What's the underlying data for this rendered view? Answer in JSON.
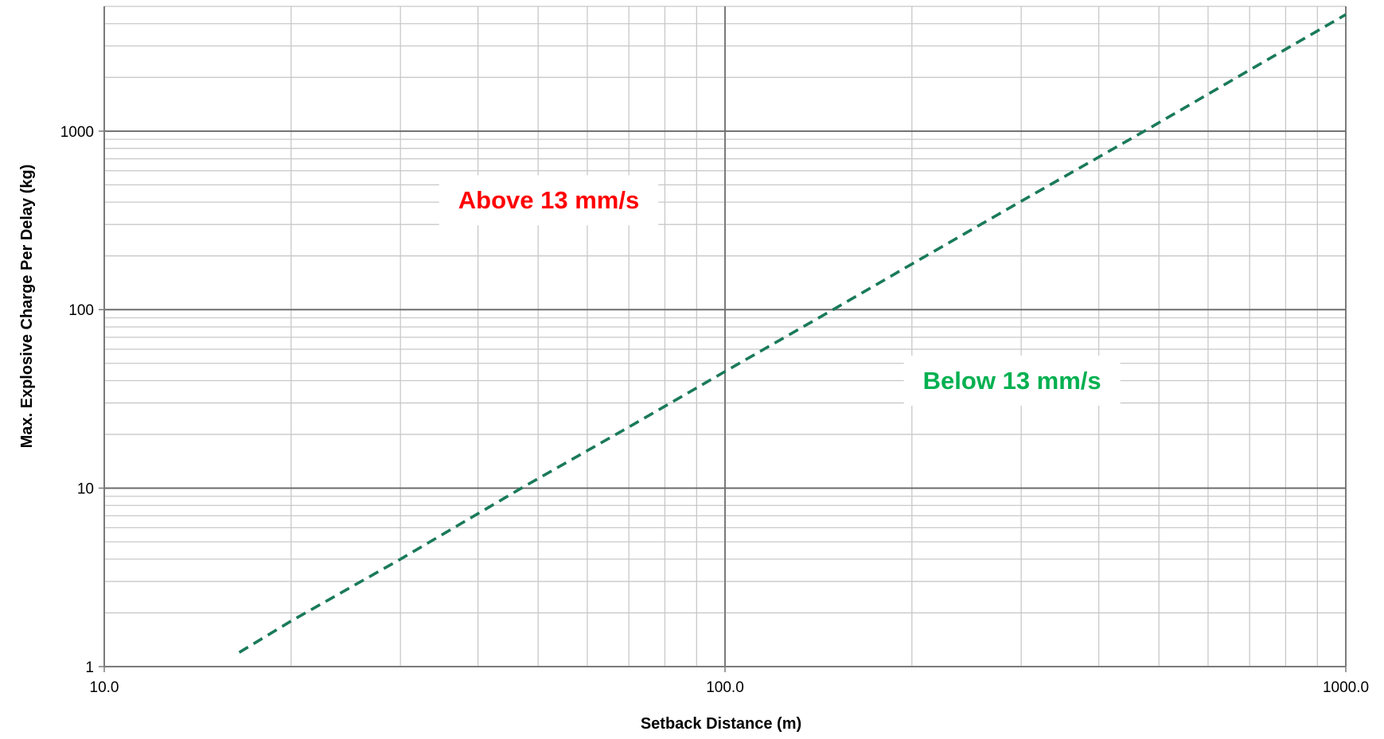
{
  "chart_data": {
    "type": "line",
    "title": "",
    "xlabel": "Setback Distance (m)",
    "ylabel": "Max. Explosive Charge Per Delay (kg)",
    "x_scale": "log",
    "y_scale": "log",
    "xlim": [
      10,
      1000
    ],
    "ylim": [
      1,
      5000
    ],
    "x_ticks": [
      10,
      100,
      1000
    ],
    "x_tick_labels": [
      "10.0",
      "100.0",
      "1000.0"
    ],
    "y_ticks": [
      1,
      10,
      100,
      1000
    ],
    "y_tick_labels": [
      "1",
      "10",
      "100",
      "1000"
    ],
    "grid": true,
    "legend": "none",
    "series": [
      {
        "line_style": "dashed",
        "color": "#1a7a5a",
        "x": [
          16.5,
          20,
          30,
          47,
          70,
          100,
          150,
          200,
          300,
          476,
          700,
          1000
        ],
        "y": [
          1.2,
          1.8,
          4.0,
          10.0,
          22,
          45,
          101,
          180,
          405,
          1010,
          2200,
          4500
        ]
      }
    ],
    "annotations": [
      {
        "text": "Above 13 mm/s",
        "x": 52,
        "y": 410,
        "color": "#ff0000"
      },
      {
        "text": "Below 13 mm/s",
        "x": 290,
        "y": 40,
        "color": "#00b050"
      }
    ]
  }
}
